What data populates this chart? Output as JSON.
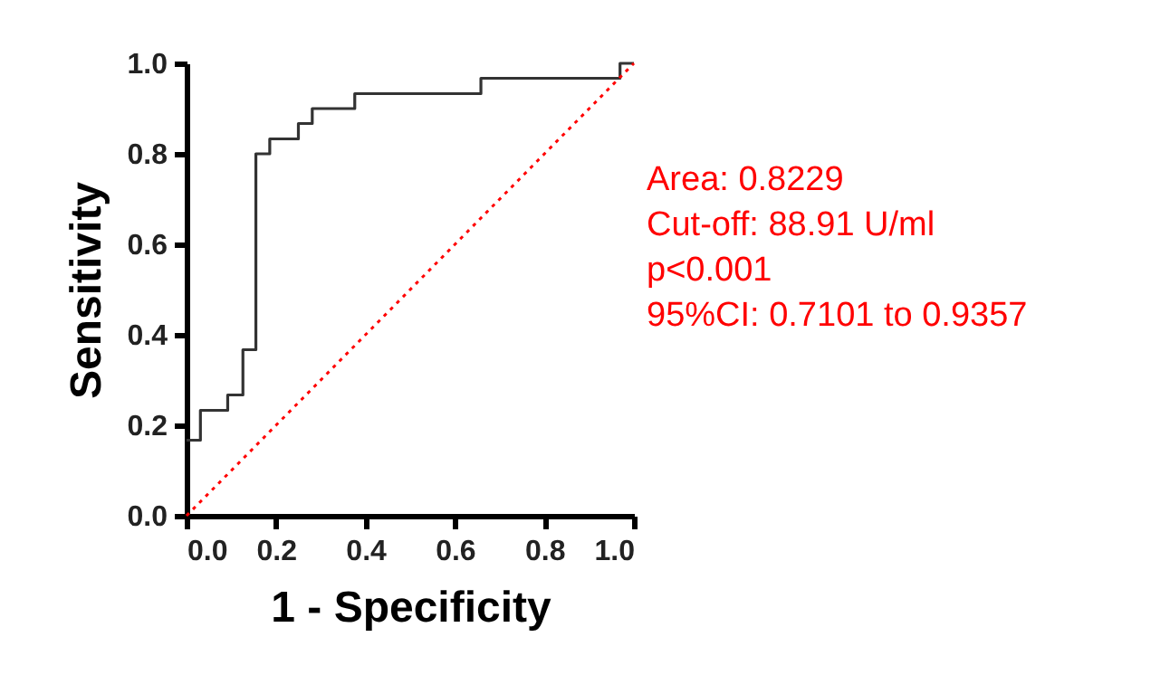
{
  "chart_data": {
    "type": "step",
    "xlabel": "1 - Specificity",
    "ylabel": "Sensitivity",
    "series": [
      {
        "type": "step",
        "color": "#333333",
        "x": [
          0,
          0.031,
          0.092,
          0.126,
          0.155,
          0.186,
          0.25,
          0.281,
          0.376,
          0.658,
          0.969,
          1
        ],
        "values": [
          0.167,
          0.233,
          0.267,
          0.367,
          0.8,
          0.833,
          0.867,
          0.9,
          0.933,
          0.967,
          1,
          1
        ]
      },
      {
        "type": "line",
        "color": "#ff0000",
        "line_style": "dotted",
        "x": [
          0,
          1
        ],
        "values": [
          0,
          1
        ]
      }
    ],
    "xlim": [
      0,
      1
    ],
    "ylim": [
      0,
      1
    ],
    "xticks": [
      {
        "value": 0,
        "label": "0.0"
      },
      0.2,
      0.4,
      0.6,
      0.8,
      {
        "value": 1,
        "label": "1.0"
      }
    ],
    "yticks": [
      {
        "value": 0,
        "label": "0.0"
      },
      0.2,
      0.4,
      0.6,
      0.8,
      {
        "value": 1,
        "label": "1.0"
      }
    ],
    "grid": false,
    "annotations": [
      "Area: 0.8229",
      "Cut-off: 88.91 U/ml",
      "p<0.001",
      "95%CI: 0.7101 to 0.9357"
    ]
  }
}
